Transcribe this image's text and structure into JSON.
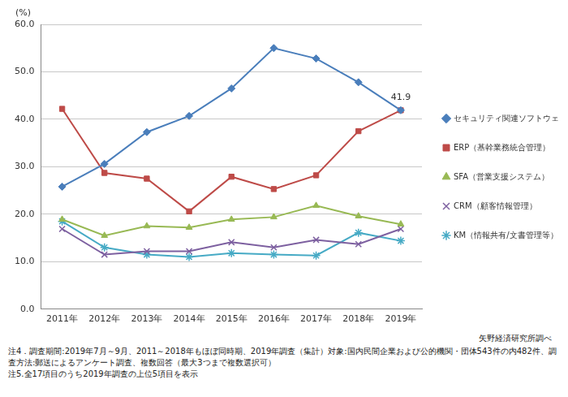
{
  "chart_data": {
    "type": "line",
    "y_label": "(%)",
    "categories": [
      "2011年",
      "2012年",
      "2013年",
      "2014年",
      "2015年",
      "2016年",
      "2017年",
      "2018年",
      "2019年"
    ],
    "series": [
      {
        "name": "セキュリティ関連ソフトウェア",
        "color": "#4a7ebb",
        "marker": "diamond",
        "values": [
          25.8,
          30.6,
          37.3,
          40.7,
          46.5,
          55.0,
          52.8,
          47.8,
          41.9
        ]
      },
      {
        "name": "ERP（基幹業務統合管理）",
        "color": "#be4b48",
        "marker": "square",
        "values": [
          42.2,
          28.7,
          27.5,
          20.6,
          27.9,
          25.3,
          28.2,
          37.5,
          41.9
        ]
      },
      {
        "name": "SFA（営業支援システム）",
        "color": "#98b954",
        "marker": "triangle",
        "values": [
          18.9,
          15.5,
          17.5,
          17.2,
          18.9,
          19.4,
          21.8,
          19.6,
          17.9
        ]
      },
      {
        "name": "CRM（顧客情報管理）",
        "color": "#7d60a0",
        "marker": "x",
        "values": [
          16.9,
          11.5,
          12.2,
          12.2,
          14.1,
          13.0,
          14.6,
          13.7,
          16.9
        ]
      },
      {
        "name": "KM（情報共有/文書管理等）",
        "color": "#46aac5",
        "marker": "star",
        "values": [
          18.5,
          13.0,
          11.5,
          11.0,
          11.8,
          11.5,
          11.3,
          16.1,
          14.4
        ]
      }
    ],
    "annotations": [
      {
        "series": "セキュリティ関連ソフトウェア",
        "category": "2019年",
        "value": 41.9,
        "text": "41.9"
      }
    ],
    "ylim": [
      0,
      60
    ],
    "yticks": [
      {
        "value": 0,
        "label": "0.0"
      },
      {
        "value": 10,
        "label": "10.0"
      },
      {
        "value": 20,
        "label": "20.0"
      },
      {
        "value": 30,
        "label": "30.0"
      },
      {
        "value": 40,
        "label": "40.0"
      },
      {
        "value": 50,
        "label": "50.0"
      },
      {
        "value": 60,
        "label": "60.0"
      }
    ],
    "grid": "y",
    "legend": "right",
    "source": "矢野経済研究所調べ",
    "notes": [
      "注4．調査期間:2019年7月～9月、2011～2018年もほぼ同時期、2019年調査（集計）対象:国内民間企業および公的機関・団体543件の内482件、調査方法:郵送によるアンケート調査、複数回答（最大3つまで複数選択可）",
      "注5.全17項目のうち2019年調査の上位5項目を表示"
    ]
  }
}
